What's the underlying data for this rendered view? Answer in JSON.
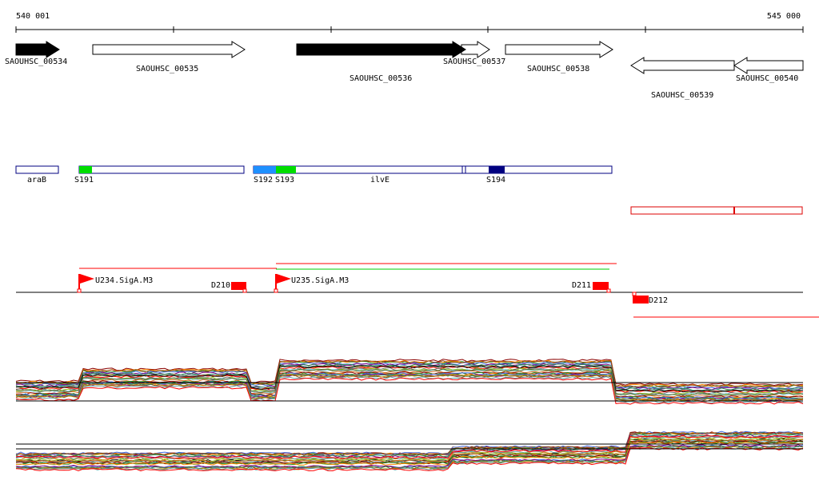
{
  "ruler": {
    "start_label": "540 001",
    "end_label": "545 000"
  },
  "genes": [
    {
      "id": "g534",
      "name": "SAOUHSC_00534",
      "strand": "+",
      "fill": "#000000"
    },
    {
      "id": "g535",
      "name": "SAOUHSC_00535",
      "strand": "+",
      "fill": "#ffffff"
    },
    {
      "id": "g536",
      "name": "SAOUHSC_00536",
      "strand": "+",
      "fill": "#000000"
    },
    {
      "id": "g537",
      "name": "SAOUHSC_00537",
      "strand": "+",
      "fill": "#ffffff"
    },
    {
      "id": "g538",
      "name": "SAOUHSC_00538",
      "strand": "+",
      "fill": "#ffffff"
    },
    {
      "id": "g539",
      "name": "SAOUHSC_00539",
      "strand": "-",
      "fill": "#ffffff"
    },
    {
      "id": "g540",
      "name": "SAOUHSC_00540",
      "strand": "-",
      "fill": "#ffffff"
    }
  ],
  "segments": {
    "labels": [
      "araB",
      "S191",
      "S192",
      "S193",
      "ilvE",
      "S194"
    ],
    "colors": {
      "outline": "#000080",
      "green": "#00dd00",
      "lightblue": "#1e90ff",
      "navy": "#000080",
      "red": "#dd0000"
    }
  },
  "promoters": [
    {
      "name": "U234.SigA.M3"
    },
    {
      "name": "U235.SigA.M3"
    }
  ],
  "terminators": [
    {
      "name": "D210"
    },
    {
      "name": "D211"
    },
    {
      "name": "D212"
    }
  ],
  "tracks": {
    "count": 2,
    "colors": [
      "#8b0000",
      "#228b22",
      "#ff8c00",
      "#4169e1",
      "#8b4513",
      "#800080",
      "#2e8b57",
      "#b8860b",
      "#5f9ea0",
      "#ff0000",
      "#000000",
      "#696969",
      "#9acd32",
      "#87ceeb",
      "#d2691e",
      "#556b2f"
    ]
  }
}
